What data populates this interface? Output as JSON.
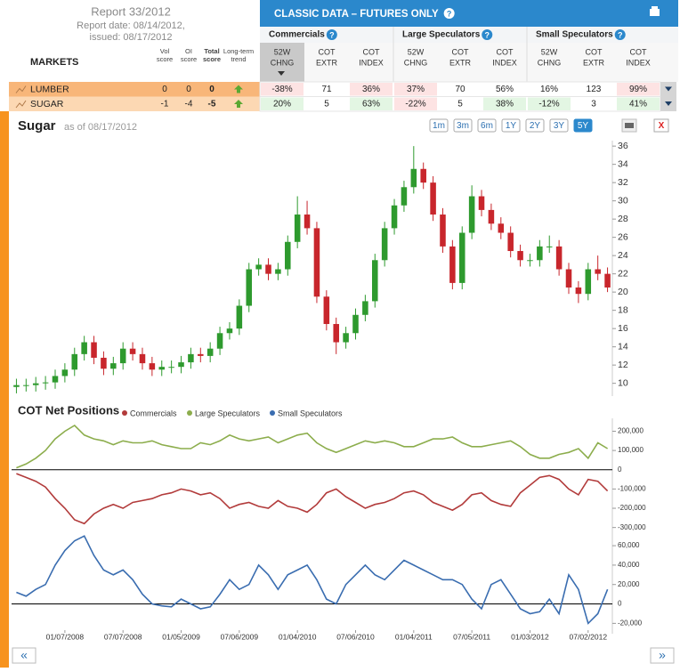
{
  "report": {
    "title": "Report 33/2012",
    "report_date": "Report date: 08/14/2012,",
    "issued": "issued: 08/17/2012"
  },
  "banner": {
    "title": "CLASSIC DATA – FUTURES ONLY",
    "help": "?"
  },
  "markets_header": "MARKETS",
  "score_columns": [
    [
      "Vol",
      "score"
    ],
    [
      "OI",
      "score"
    ],
    [
      "Total",
      "score"
    ],
    [
      "Long-term",
      "trend"
    ]
  ],
  "groups": [
    {
      "name": "Commercials",
      "columns": [
        [
          "52W",
          "CHNG"
        ],
        [
          "COT",
          "EXTR"
        ],
        [
          "COT",
          "INDEX"
        ]
      ]
    },
    {
      "name": "Large Speculators",
      "columns": [
        [
          "52W",
          "CHNG"
        ],
        [
          "COT",
          "EXTR"
        ],
        [
          "COT",
          "INDEX"
        ]
      ]
    },
    {
      "name": "Small Speculators",
      "columns": [
        [
          "52W",
          "CHNG"
        ],
        [
          "COT",
          "EXTR"
        ],
        [
          "COT",
          "INDEX"
        ]
      ]
    }
  ],
  "rows": [
    {
      "market": "LUMBER",
      "scores": [
        0,
        0,
        0
      ],
      "cells": [
        "-38%",
        "71",
        "36%",
        "37%",
        "70",
        "56%",
        "16%",
        "123",
        "99%"
      ]
    },
    {
      "market": "SUGAR",
      "scores": [
        -1,
        -4,
        -5
      ],
      "cells": [
        "20%",
        "5",
        "63%",
        "-22%",
        "5",
        "38%",
        "-12%",
        "3",
        "41%"
      ]
    }
  ],
  "price_chart": {
    "type": "candlestick",
    "title": "Sugar",
    "as_of": "as of 08/17/2012",
    "ranges": [
      "1m",
      "3m",
      "6m",
      "1Y",
      "2Y",
      "3Y",
      "5Y"
    ],
    "active_range": "5Y",
    "close_button": "X",
    "up_color": "#2e9a2e",
    "down_color": "#c8262c",
    "ylim": [
      8.6,
      36.6
    ],
    "yticks": [
      10,
      12,
      14,
      16,
      18,
      20,
      22,
      24,
      26,
      28,
      30,
      32,
      34,
      36
    ],
    "open": [
      9.6,
      9.8,
      9.8,
      10.0,
      10.1,
      10.8,
      11.5,
      13.2,
      14.5,
      12.8,
      11.6,
      12.2,
      13.8,
      13.2,
      12.2,
      11.5,
      11.8,
      11.8,
      12.3,
      13.2,
      13.0,
      13.8,
      15.5,
      16.0,
      18.5,
      22.5,
      23.0,
      22.0,
      22.5,
      25.5,
      28.5,
      27.0,
      19.5,
      16.5,
      14.5,
      15.5,
      17.5,
      19.0,
      23.5,
      27.0,
      29.5,
      31.5,
      33.5,
      32.0,
      28.5,
      25.0,
      21.0,
      26.5,
      30.5,
      29.0,
      27.5,
      26.5,
      24.5,
      23.5,
      23.5,
      25.0,
      25.0,
      22.5,
      20.5,
      19.8,
      22.5,
      22.0
    ],
    "high": [
      10.5,
      10.5,
      10.7,
      10.8,
      11.5,
      12.2,
      13.9,
      15.2,
      15.2,
      13.5,
      12.9,
      14.5,
      14.5,
      13.9,
      12.9,
      12.5,
      12.5,
      13.0,
      13.9,
      13.9,
      14.5,
      16.2,
      16.7,
      19.2,
      23.2,
      23.7,
      23.7,
      23.2,
      26.2,
      30.5,
      30.0,
      27.7,
      20.2,
      17.2,
      16.2,
      18.2,
      19.7,
      24.2,
      27.7,
      30.2,
      32.2,
      36.0,
      34.2,
      32.7,
      29.2,
      25.7,
      27.2,
      31.7,
      31.2,
      29.7,
      28.2,
      27.2,
      25.2,
      24.2,
      25.7,
      26.2,
      25.7,
      23.2,
      21.2,
      23.2,
      24.0,
      22.7
    ],
    "low": [
      8.9,
      9.1,
      9.1,
      9.3,
      9.4,
      10.1,
      10.8,
      12.5,
      12.1,
      10.9,
      10.9,
      11.5,
      12.5,
      11.5,
      10.8,
      10.8,
      11.1,
      11.1,
      11.6,
      12.3,
      12.3,
      13.1,
      14.8,
      15.3,
      17.8,
      21.8,
      21.3,
      21.3,
      21.8,
      24.8,
      26.3,
      18.8,
      15.8,
      13.2,
      13.8,
      14.8,
      16.8,
      18.3,
      22.8,
      26.3,
      28.8,
      30.8,
      31.3,
      27.8,
      24.3,
      20.3,
      20.3,
      25.8,
      28.3,
      26.8,
      25.8,
      23.8,
      22.8,
      22.8,
      22.8,
      24.3,
      21.8,
      19.8,
      18.8,
      19.1,
      21.3,
      20.0
    ],
    "close": [
      9.8,
      9.8,
      10.0,
      10.1,
      10.8,
      11.5,
      13.2,
      14.5,
      12.8,
      11.6,
      12.2,
      13.8,
      13.2,
      12.2,
      11.5,
      11.8,
      11.8,
      12.3,
      13.2,
      13.0,
      13.8,
      15.5,
      16.0,
      18.5,
      22.5,
      23.0,
      22.0,
      22.5,
      25.5,
      28.5,
      27.0,
      19.5,
      16.5,
      14.5,
      15.5,
      17.5,
      19.0,
      23.5,
      27.0,
      29.5,
      31.5,
      33.5,
      32.0,
      28.5,
      25.0,
      21.0,
      26.5,
      30.5,
      29.0,
      27.5,
      26.5,
      24.5,
      23.5,
      23.5,
      25.0,
      25.0,
      22.5,
      20.5,
      19.8,
      22.5,
      22.0,
      20.5
    ]
  },
  "cot_chart": {
    "type": "line",
    "title": "COT Net Positions",
    "categories": [
      null,
      null,
      null,
      null,
      null,
      "01/07/2008",
      null,
      null,
      null,
      null,
      null,
      "07/07/2008",
      null,
      null,
      null,
      null,
      null,
      "01/05/2009",
      null,
      null,
      null,
      null,
      null,
      "07/06/2009",
      null,
      null,
      null,
      null,
      null,
      "01/04/2010",
      null,
      null,
      null,
      null,
      null,
      "07/06/2010",
      null,
      null,
      null,
      null,
      null,
      "01/04/2011",
      null,
      null,
      null,
      null,
      null,
      "07/05/2011",
      null,
      null,
      null,
      null,
      null,
      "01/03/2012",
      null,
      null,
      null,
      null,
      null,
      "07/02/2012",
      null,
      null
    ],
    "panels": [
      {
        "ylim": [
          -320000,
          230000
        ],
        "yticks": [
          {
            "value": 200000,
            "label": "200,000"
          },
          {
            "value": 100000,
            "label": "100,000"
          },
          0,
          {
            "value": -100000,
            "label": "-100,000"
          },
          {
            "value": -200000,
            "label": "-200,000"
          },
          {
            "value": -300000,
            "label": "-300,000"
          }
        ],
        "series": [
          {
            "name": "Commercials",
            "color": "#b23b3b",
            "values": [
              -20000,
              -40000,
              -60000,
              -90000,
              -150000,
              -200000,
              -260000,
              -280000,
              -230000,
              -200000,
              -180000,
              -200000,
              -170000,
              -160000,
              -150000,
              -130000,
              -120000,
              -100000,
              -110000,
              -130000,
              -120000,
              -150000,
              -200000,
              -180000,
              -170000,
              -190000,
              -200000,
              -160000,
              -190000,
              -200000,
              -220000,
              -180000,
              -120000,
              -100000,
              -140000,
              -170000,
              -200000,
              -180000,
              -170000,
              -150000,
              -120000,
              -110000,
              -130000,
              -170000,
              -190000,
              -210000,
              -180000,
              -130000,
              -120000,
              -160000,
              -180000,
              -190000,
              -120000,
              -80000,
              -40000,
              -30000,
              -50000,
              -100000,
              -130000,
              -50000,
              -60000,
              -110000
            ]
          },
          {
            "name": "Large Speculators",
            "color": "#8cad4c",
            "values": [
              10000,
              30000,
              60000,
              100000,
              160000,
              200000,
              230000,
              180000,
              160000,
              150000,
              130000,
              150000,
              140000,
              140000,
              150000,
              130000,
              120000,
              110000,
              110000,
              140000,
              130000,
              150000,
              180000,
              160000,
              150000,
              160000,
              170000,
              140000,
              160000,
              180000,
              190000,
              140000,
              110000,
              90000,
              110000,
              130000,
              150000,
              140000,
              150000,
              140000,
              120000,
              120000,
              140000,
              160000,
              160000,
              170000,
              140000,
              120000,
              120000,
              130000,
              140000,
              150000,
              120000,
              80000,
              60000,
              60000,
              80000,
              90000,
              110000,
              60000,
              140000,
              110000
            ]
          }
        ]
      },
      {
        "ylim": [
          -27000,
          72000
        ],
        "yticks": [
          {
            "value": 60000,
            "label": "60,000"
          },
          {
            "value": 40000,
            "label": "40,000"
          },
          {
            "value": 20000,
            "label": "20,000"
          },
          0,
          {
            "value": -20000,
            "label": "-20,000"
          }
        ],
        "series": [
          {
            "name": "Small Speculators",
            "color": "#3a6db0",
            "values": [
              12000,
              8000,
              15000,
              20000,
              40000,
              55000,
              65000,
              70000,
              50000,
              35000,
              30000,
              35000,
              25000,
              10000,
              0,
              -2000,
              -3000,
              5000,
              0,
              -5000,
              -3000,
              10000,
              25000,
              15000,
              20000,
              40000,
              30000,
              15000,
              30000,
              35000,
              40000,
              25000,
              5000,
              0,
              20000,
              30000,
              40000,
              30000,
              25000,
              35000,
              45000,
              40000,
              35000,
              30000,
              25000,
              25000,
              20000,
              5000,
              -5000,
              20000,
              25000,
              10000,
              -5000,
              -10000,
              -8000,
              5000,
              -10000,
              30000,
              15000,
              -20000,
              -10000,
              15000
            ]
          }
        ]
      }
    ]
  },
  "nav": {
    "prev": "«",
    "next": "»"
  }
}
